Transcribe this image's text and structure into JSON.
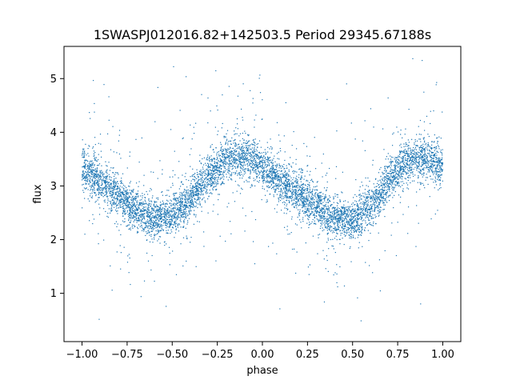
{
  "chart_data": {
    "type": "scatter",
    "title": "1SWASPJ012016.82+142503.5 Period 29345.67188s",
    "xlabel": "phase",
    "ylabel": "flux",
    "xlim": [
      -1.1,
      1.1
    ],
    "ylim": [
      0.1,
      5.6
    ],
    "x_ticks": [
      -1.0,
      -0.75,
      -0.5,
      -0.25,
      0.0,
      0.25,
      0.5,
      0.75,
      1.0
    ],
    "x_tick_labels": [
      "−1.00",
      "−0.75",
      "−0.50",
      "−0.25",
      "0.00",
      "0.25",
      "0.50",
      "0.75",
      "1.00"
    ],
    "y_ticks": [
      1,
      2,
      3,
      4,
      5
    ],
    "y_tick_labels": [
      "1",
      "2",
      "3",
      "4",
      "5"
    ],
    "grid": false,
    "legend": "none",
    "marker_color": "#1f77b4",
    "series": [
      {
        "x": [
          -1.0,
          -0.9,
          -0.8,
          -0.7,
          -0.6,
          -0.5,
          -0.4,
          -0.3,
          -0.2,
          -0.1,
          0.0,
          0.1,
          0.2,
          0.3,
          0.4,
          0.5,
          0.6,
          0.7,
          0.8,
          0.9,
          1.0
        ],
        "y": [
          3.35,
          3.1,
          2.8,
          2.55,
          2.4,
          2.45,
          2.75,
          3.2,
          3.5,
          3.55,
          3.35,
          3.1,
          2.85,
          2.6,
          2.4,
          2.35,
          2.6,
          3.1,
          3.45,
          3.5,
          3.4
        ],
        "spread": 0.32
      }
    ]
  }
}
